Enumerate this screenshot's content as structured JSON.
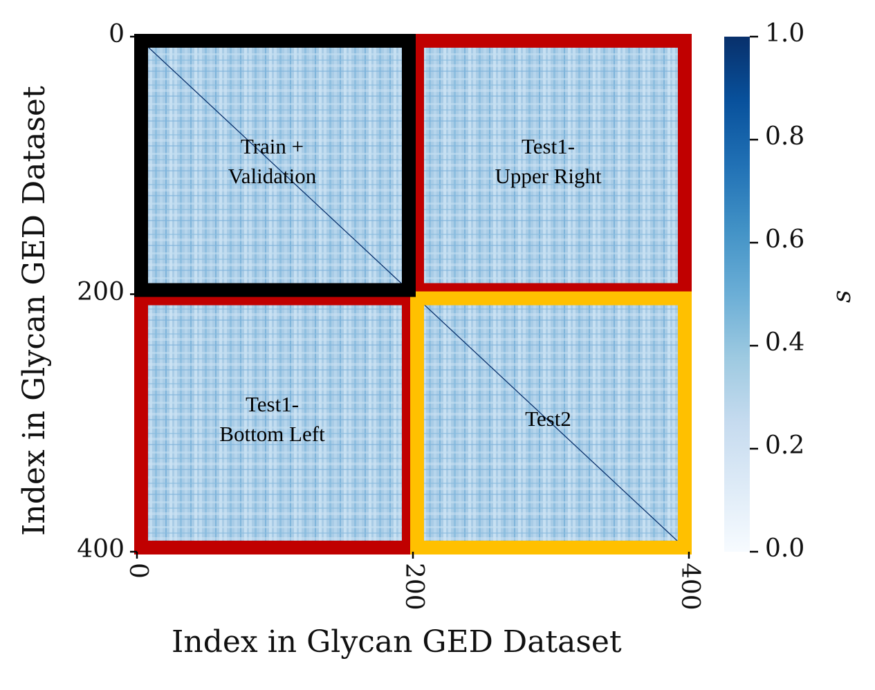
{
  "chart_data": {
    "type": "heatmap",
    "title": "",
    "xlabel": "Index in Glycan GED Dataset",
    "ylabel": "Index in Glycan GED Dataset",
    "xlim": [
      0,
      400
    ],
    "ylim": [
      0,
      400
    ],
    "x_ticks": [
      "0",
      "200",
      "400"
    ],
    "y_ticks": [
      "0",
      "200",
      "400"
    ],
    "colorbar": {
      "label": "s",
      "range": [
        0.0,
        1.0
      ],
      "ticks": [
        "0.0",
        "0.2",
        "0.4",
        "0.6",
        "0.8",
        "1.0"
      ],
      "colormap": "Blues"
    },
    "diagonal_value": 1.0,
    "typical_off_diagonal_value": 0.35,
    "regions": [
      {
        "id": "train-validation",
        "lines": [
          "Train +",
          "Validation"
        ],
        "x_range": [
          0,
          200
        ],
        "y_range": [
          0,
          200
        ],
        "border_color": "#000000"
      },
      {
        "id": "test1-upper-right",
        "lines": [
          "Test1-",
          "Upper Right"
        ],
        "x_range": [
          200,
          400
        ],
        "y_range": [
          0,
          200
        ],
        "border_color": "#c00000"
      },
      {
        "id": "test1-bottom-left",
        "lines": [
          "Test1-",
          "Bottom Left"
        ],
        "x_range": [
          0,
          200
        ],
        "y_range": [
          200,
          400
        ],
        "border_color": "#c00000"
      },
      {
        "id": "test2",
        "lines": [
          "Test2"
        ],
        "x_range": [
          200,
          400
        ],
        "y_range": [
          200,
          400
        ],
        "border_color": "#ffc000"
      }
    ]
  }
}
